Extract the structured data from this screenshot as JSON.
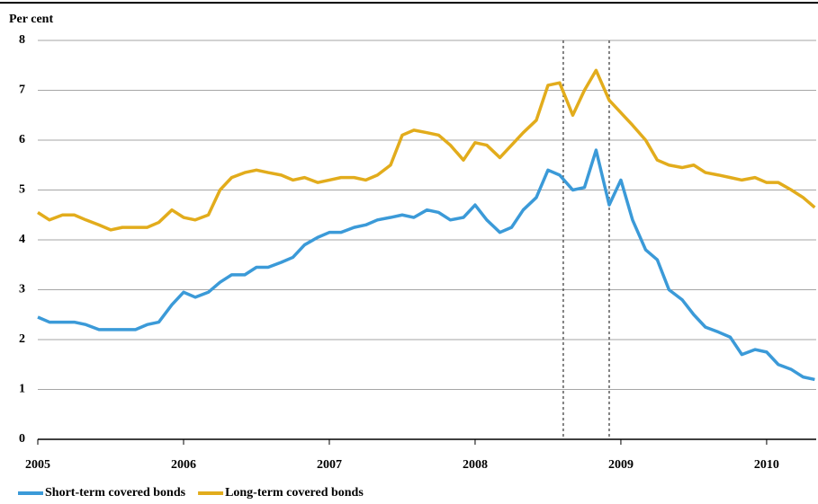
{
  "chart_data": {
    "type": "line",
    "y_label": "Per cent",
    "x": [
      2005,
      2005.08,
      2005.17,
      2005.25,
      2005.33,
      2005.42,
      2005.5,
      2005.58,
      2005.67,
      2005.75,
      2005.83,
      2005.92,
      2006,
      2006.08,
      2006.17,
      2006.25,
      2006.33,
      2006.42,
      2006.5,
      2006.58,
      2006.67,
      2006.75,
      2006.83,
      2006.92,
      2007,
      2007.08,
      2007.17,
      2007.25,
      2007.33,
      2007.42,
      2007.5,
      2007.58,
      2007.67,
      2007.75,
      2007.83,
      2007.92,
      2008,
      2008.08,
      2008.17,
      2008.25,
      2008.33,
      2008.42,
      2008.5,
      2008.58,
      2008.67,
      2008.75,
      2008.83,
      2008.92,
      2009,
      2009.08,
      2009.17,
      2009.25,
      2009.33,
      2009.42,
      2009.5,
      2009.58,
      2009.67,
      2009.75,
      2009.83,
      2009.92,
      2010,
      2010.08,
      2010.17,
      2010.25,
      2010.33
    ],
    "series": [
      {
        "name": "Short-term covered bonds",
        "color": "#3b9ad8",
        "values": [
          2.45,
          2.35,
          2.35,
          2.35,
          2.3,
          2.2,
          2.2,
          2.2,
          2.2,
          2.3,
          2.35,
          2.7,
          2.95,
          2.85,
          2.95,
          3.15,
          3.3,
          3.3,
          3.45,
          3.45,
          3.55,
          3.65,
          3.9,
          4.05,
          4.15,
          4.15,
          4.25,
          4.3,
          4.4,
          4.45,
          4.5,
          4.45,
          4.6,
          4.55,
          4.4,
          4.45,
          4.7,
          4.4,
          4.15,
          4.25,
          4.6,
          4.85,
          5.4,
          5.3,
          5.0,
          5.05,
          5.8,
          4.7,
          5.2,
          4.4,
          3.8,
          3.6,
          3.0,
          2.8,
          2.5,
          2.25,
          2.15,
          2.05,
          1.7,
          1.8,
          1.75,
          1.5,
          1.4,
          1.25,
          1.2
        ]
      },
      {
        "name": "Long-term covered bonds",
        "color": "#e2ac1c",
        "values": [
          4.55,
          4.4,
          4.5,
          4.5,
          4.4,
          4.3,
          4.2,
          4.25,
          4.25,
          4.25,
          4.35,
          4.6,
          4.45,
          4.4,
          4.5,
          5.0,
          5.25,
          5.35,
          5.4,
          5.35,
          5.3,
          5.2,
          5.25,
          5.15,
          5.2,
          5.25,
          5.25,
          5.2,
          5.3,
          5.5,
          6.1,
          6.2,
          6.15,
          6.1,
          5.9,
          5.6,
          5.95,
          5.9,
          5.65,
          5.9,
          6.15,
          6.4,
          7.1,
          7.15,
          6.5,
          7.0,
          7.4,
          6.8,
          6.55,
          6.3,
          6.0,
          5.6,
          5.5,
          5.45,
          5.5,
          5.35,
          5.3,
          5.25,
          5.2,
          5.25,
          5.15,
          5.15,
          5.0,
          4.85,
          4.65
        ]
      }
    ],
    "xlim": [
      2005,
      2010.34
    ],
    "xticks": [
      2005,
      2006,
      2007,
      2008,
      2009,
      2010
    ],
    "ylim": [
      0,
      8
    ],
    "yticks": [
      0,
      1,
      2,
      3,
      4,
      5,
      6,
      7,
      8
    ],
    "vlines": [
      2008.605,
      2008.92
    ],
    "grid": true
  }
}
